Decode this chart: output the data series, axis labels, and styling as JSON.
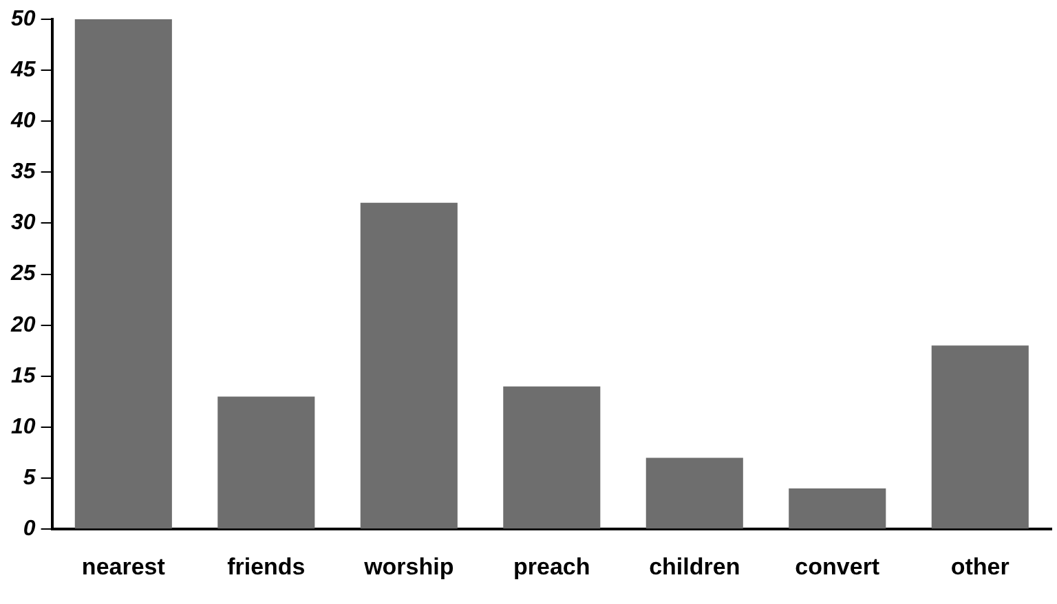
{
  "chart_data": {
    "type": "bar",
    "categories": [
      "nearest",
      "friends",
      "worship",
      "preach",
      "children",
      "convert",
      "other"
    ],
    "values": [
      50,
      13,
      32,
      14,
      7,
      4,
      18
    ],
    "color": "#6e6e6e",
    "ylim": [
      0,
      50
    ],
    "yticks": [
      0,
      5,
      10,
      15,
      20,
      25,
      30,
      35,
      40,
      45,
      50
    ],
    "grid": false,
    "legend": false
  }
}
